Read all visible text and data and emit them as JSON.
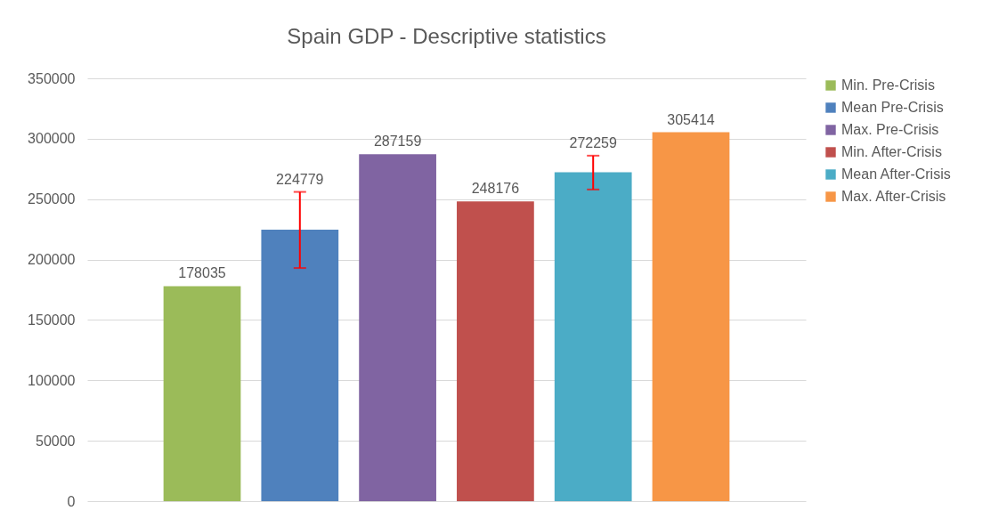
{
  "chart_data": {
    "type": "bar",
    "title": "Spain GDP - Descriptive statistics",
    "categories": [
      null,
      null,
      null,
      null,
      null,
      null
    ],
    "series": [
      {
        "name": "Min. Pre-Crisis",
        "color": "#9bbb59",
        "values": [
          178035,
          null,
          null,
          null,
          null,
          null
        ]
      },
      {
        "name": "Mean Pre-Crisis",
        "color": "#4f81bd",
        "values": [
          null,
          224779,
          null,
          null,
          null,
          null
        ],
        "errors": [
          null,
          [
            193000,
            256000
          ],
          null,
          null,
          null,
          null
        ]
      },
      {
        "name": "Max. Pre-Crisis",
        "color": "#8064a2",
        "values": [
          null,
          null,
          287159,
          null,
          null,
          null
        ]
      },
      {
        "name": "Min. After-Crisis",
        "color": "#c0504d",
        "values": [
          null,
          null,
          null,
          248176,
          null,
          null
        ]
      },
      {
        "name": "Mean After-Crisis",
        "color": "#4bacc6",
        "values": [
          null,
          null,
          null,
          null,
          272259,
          null
        ],
        "errors": [
          null,
          null,
          null,
          null,
          [
            258000,
            286000
          ],
          null
        ]
      },
      {
        "name": "Max. After-Crisis",
        "color": "#f79646",
        "values": [
          null,
          null,
          null,
          null,
          null,
          305414
        ]
      }
    ],
    "ylim": [
      0,
      350000
    ],
    "yticks": [
      0,
      50000,
      100000,
      150000,
      200000,
      250000,
      300000,
      350000
    ],
    "grid": "y",
    "legend": "right",
    "data_labels": true,
    "tick_labels": "y"
  }
}
